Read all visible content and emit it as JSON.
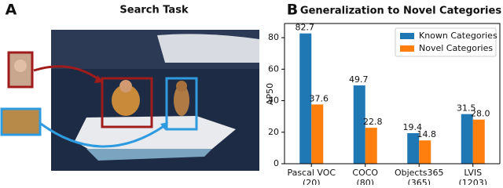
{
  "panel_a": {
    "label": "A",
    "title": "Search Task"
  },
  "chart_data": {
    "type": "bar",
    "label": "B",
    "title": "Generalization to Novel Categories",
    "y_label": "AP50",
    "categories": [
      "Pascal VOC\n(20)",
      "COCO\n(80)",
      "Objects365\n(365)",
      "LVIS\n(1203)"
    ],
    "series": [
      {
        "name": "Known Categories",
        "color": "#1f77b4",
        "values": [
          82.7,
          49.7,
          19.4,
          31.5
        ],
        "value_labels": [
          "82.7",
          "49.7",
          "19.4",
          "31.5"
        ]
      },
      {
        "name": "Novel Categories",
        "color": "#ff7f0e",
        "values": [
          37.6,
          22.8,
          14.8,
          28.0
        ],
        "value_labels": [
          "37.6",
          "22.8",
          "14.8",
          "28.0"
        ]
      }
    ],
    "ylim": [
      0,
      89
    ],
    "yticks": [
      0,
      20,
      40,
      60,
      80
    ],
    "legend": "upper right"
  }
}
